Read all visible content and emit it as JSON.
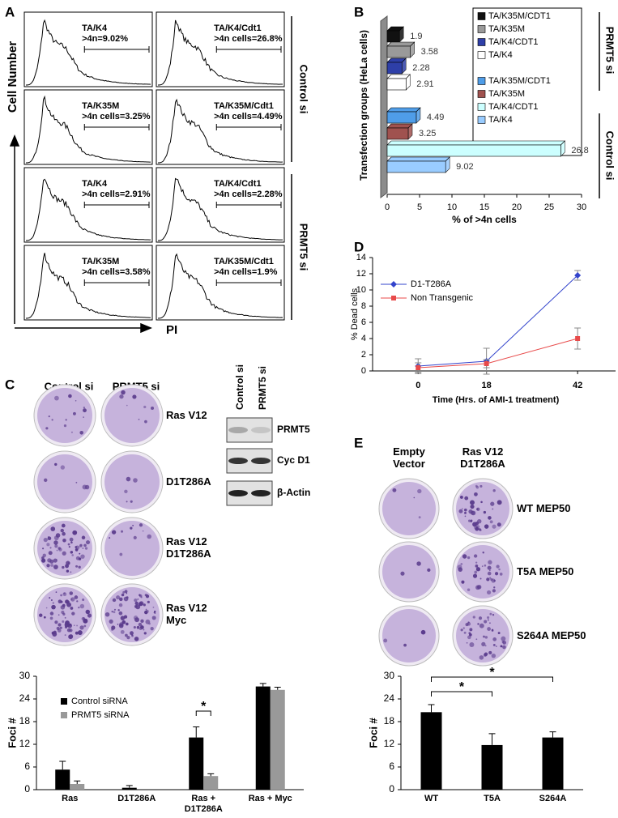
{
  "panel_labels": [
    "A",
    "B",
    "C",
    "D",
    "E"
  ],
  "flow": {
    "y_label": "Cell Number",
    "x_label": "PI",
    "side_labels": [
      "Control si",
      "PRMT5 si"
    ],
    "plots": [
      {
        "label": "TA/K4",
        "gate": ">4n=9.02%"
      },
      {
        "label": "TA/K4/Cdt1",
        "gate": ">4n cells=26.8%"
      },
      {
        "label": "TA/K35M",
        "gate": ">4n cells=3.25%"
      },
      {
        "label": "TA/K35M/Cdt1",
        "gate": ">4n cells=4.49%"
      },
      {
        "label": "TA/K4",
        "gate": ">4n cells=2.91%"
      },
      {
        "label": "TA/K4/Cdt1",
        "gate": ">4n cells=2.28%"
      },
      {
        "label": "TA/K35M",
        "gate": ">4n cells=3.58%"
      },
      {
        "label": "TA/K35M/Cdt1",
        "gate": ">4n cells=1.9%"
      }
    ]
  },
  "colonies_c": {
    "columns": [
      "Control si",
      "PRMT5 si"
    ],
    "rows": [
      "Ras V12",
      "D1T286A",
      "Ras V12 D1T286A",
      "Ras V12 Myc"
    ]
  },
  "western": {
    "lanes": [
      "Control si",
      "PRMT5 si"
    ],
    "bands": [
      "PRMT5",
      "Cyc D1",
      "β-Actin"
    ]
  },
  "colonies_e": {
    "columns": [
      "Empty Vector",
      "Ras V12 D1T286A"
    ],
    "rows": [
      "WT MEP50",
      "T5A MEP50",
      "S264A MEP50"
    ]
  },
  "chart_data": [
    {
      "type": "hbar3d",
      "y_label": "Transfection groups (HeLa cells)",
      "x_label": "% of >4n cells",
      "xlim": [
        0,
        30
      ],
      "xticks": [
        0,
        5,
        10,
        15,
        20,
        25,
        30
      ],
      "groups": [
        {
          "name": "PRMT5 si",
          "series": [
            {
              "name": "TA/K35M/CDT1",
              "color": "#111111",
              "values": [
                1.9
              ]
            },
            {
              "name": "TA/K35M",
              "color": "#9a9a9a",
              "values": [
                3.58
              ]
            },
            {
              "name": "TA/K4/CDT1",
              "color": "#2e3fa8",
              "values": [
                2.28
              ]
            },
            {
              "name": "TA/K4",
              "color": "#ffffff",
              "values": [
                2.91
              ]
            }
          ]
        },
        {
          "name": "Control si",
          "series": [
            {
              "name": "TA/K35M/CDT1",
              "color": "#4f9de8",
              "values": [
                4.49
              ]
            },
            {
              "name": "TA/K35M",
              "color": "#a0524f",
              "values": [
                3.25
              ]
            },
            {
              "name": "TA/K4/CDT1",
              "color": "#ccffff",
              "values": [
                26.8
              ]
            },
            {
              "name": "TA/K4",
              "color": "#99ccff",
              "values": [
                9.02
              ]
            }
          ]
        }
      ]
    },
    {
      "type": "line",
      "x_label": "Time (Hrs. of AMI-1 treatment)",
      "y_label": "% Dead cells",
      "x": [
        0,
        18,
        42
      ],
      "xlim": [
        -12,
        52
      ],
      "xticks": [
        0,
        18,
        42
      ],
      "ylim": [
        0,
        14
      ],
      "yticks": [
        0,
        2,
        4,
        6,
        8,
        10,
        12,
        14
      ],
      "series": [
        {
          "name": "D1-T286A",
          "color": "#3344cc",
          "marker": "diamond",
          "values": [
            0.6,
            1.2,
            11.8
          ],
          "errors": [
            0.9,
            1.6,
            0.6
          ]
        },
        {
          "name": "Non Transgenic",
          "color": "#e84a4a",
          "marker": "square",
          "values": [
            0.4,
            0.9,
            4.0
          ],
          "errors": [
            0.6,
            0.5,
            1.3
          ]
        }
      ]
    },
    {
      "type": "bar",
      "y_label": "Foci #",
      "categories": [
        "Ras",
        "D1T286A",
        "Ras + D1T286A",
        "Ras + Myc"
      ],
      "ylim": [
        0,
        30
      ],
      "yticks": [
        0,
        6,
        12,
        18,
        24,
        30
      ],
      "annotations": [
        "*"
      ],
      "series": [
        {
          "name": "Control siRNA",
          "color": "#000000",
          "values": [
            5.3,
            0.5,
            13.8,
            27.3
          ],
          "errors": [
            2.2,
            0.6,
            2.8,
            0.8
          ]
        },
        {
          "name": "PRMT5 siRNA",
          "color": "#999999",
          "values": [
            1.5,
            0,
            3.6,
            26.4
          ],
          "errors": [
            0.8,
            0,
            0.6,
            0.7
          ]
        }
      ]
    },
    {
      "type": "bar",
      "y_label": "Foci #",
      "categories": [
        "WT",
        "T5A",
        "S264A"
      ],
      "ylim": [
        0,
        30
      ],
      "yticks": [
        0,
        6,
        12,
        18,
        24,
        30
      ],
      "annotations": [
        "*",
        "*"
      ],
      "series": [
        {
          "color": "#000000",
          "values": [
            20.5,
            11.8,
            13.8
          ],
          "errors": [
            2.0,
            3.0,
            1.5
          ]
        }
      ]
    }
  ]
}
